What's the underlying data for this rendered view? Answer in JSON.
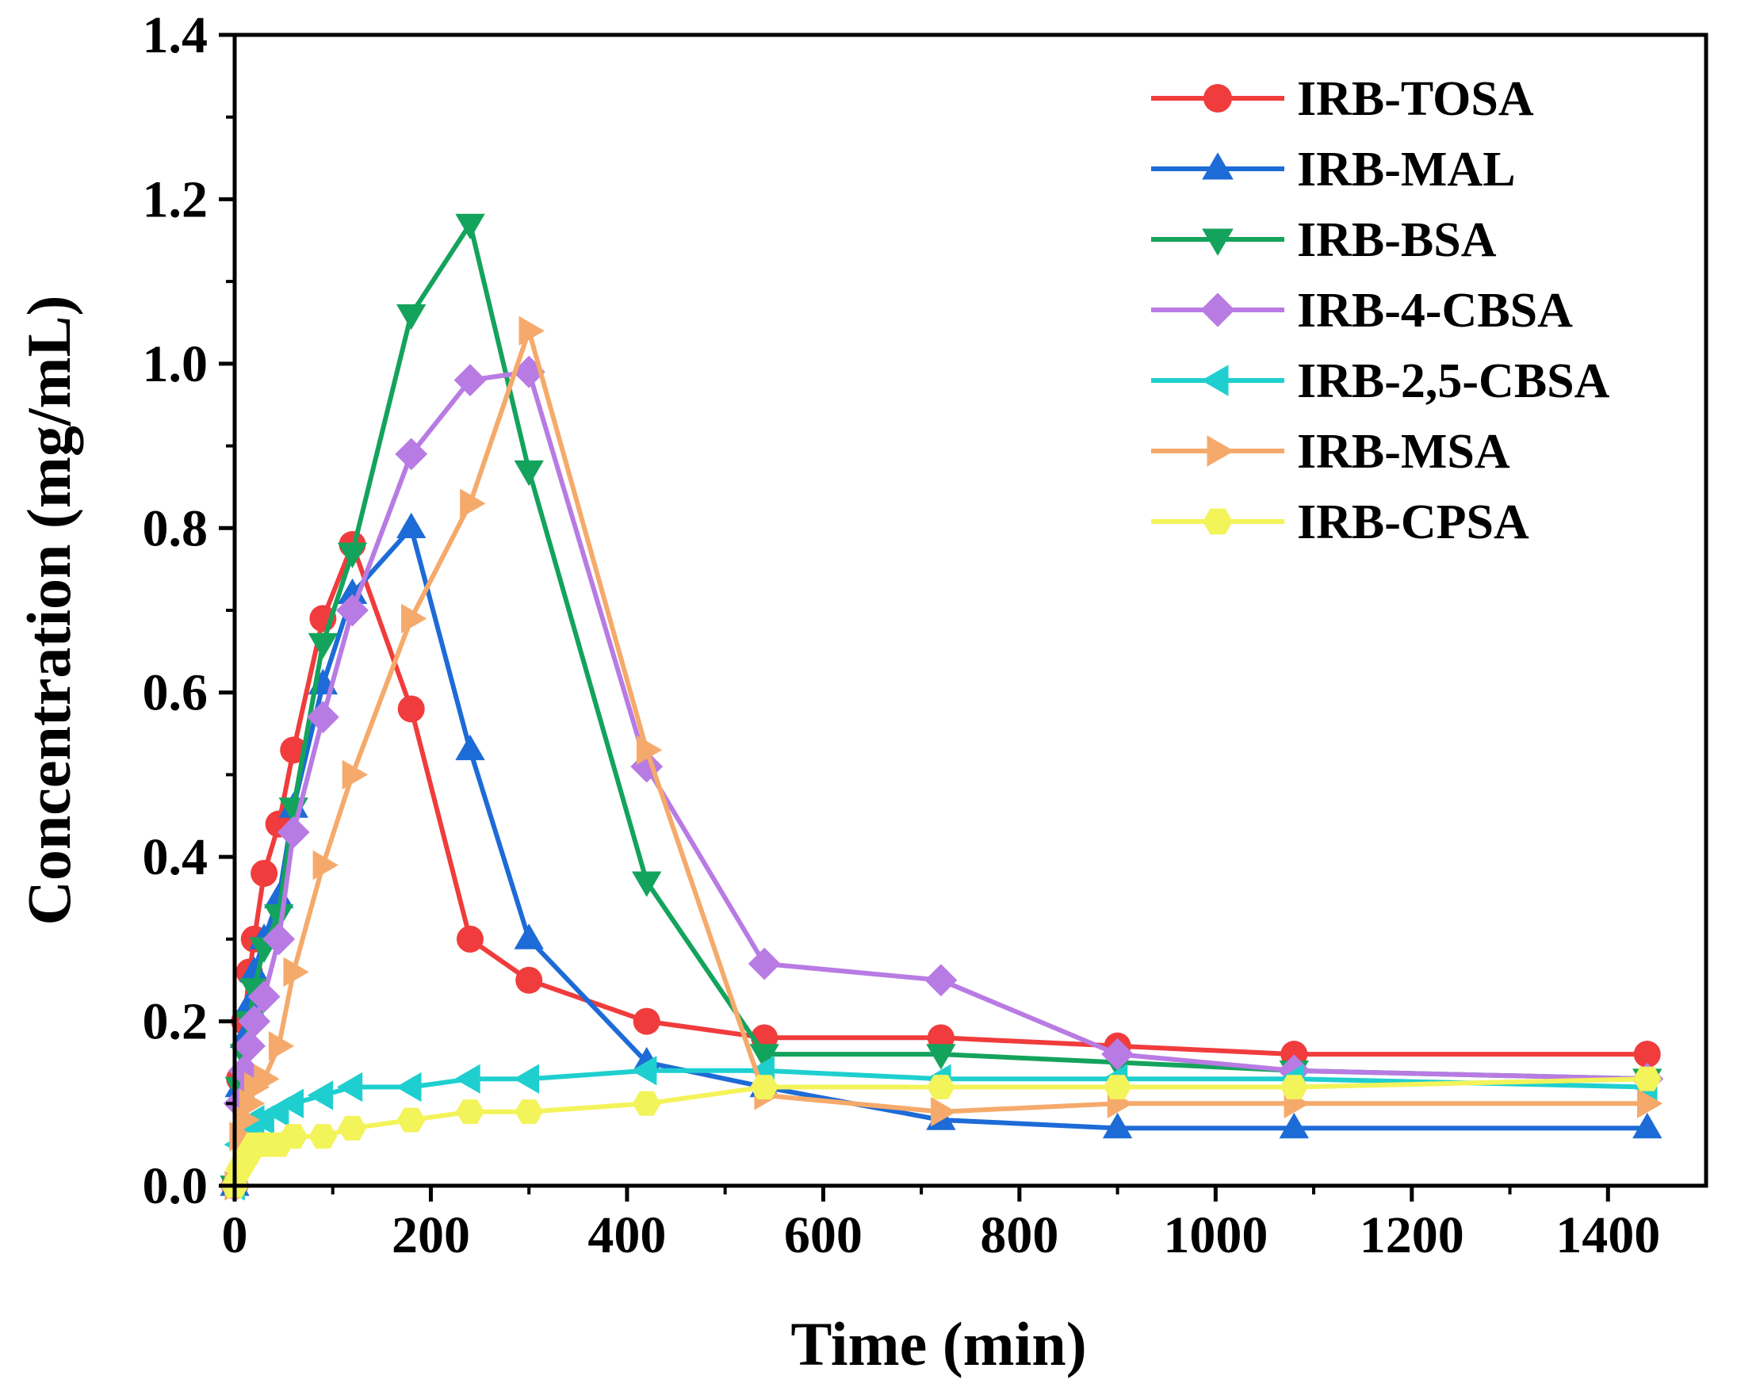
{
  "chart_data": {
    "type": "line",
    "title": "",
    "xlabel": "Time (min)",
    "ylabel": "Concentration (mg/mL)",
    "xlim": [
      0,
      1500
    ],
    "ylim": [
      0,
      1.4
    ],
    "xticks": [
      0,
      200,
      400,
      600,
      800,
      1000,
      1200,
      1400
    ],
    "xtick_labels": [
      "0",
      "200",
      "400",
      "600",
      "800",
      "1000",
      "1200",
      "1400"
    ],
    "yticks": [
      0,
      0.2,
      0.4,
      0.6,
      0.8,
      1.0,
      1.2,
      1.4
    ],
    "ytick_labels": [
      "0.0",
      "0.2",
      "0.4",
      "0.6",
      "0.8",
      "1.0",
      "1.2",
      "1.4"
    ],
    "grid": false,
    "legend_position": "top-right",
    "series": [
      {
        "name": "IRB-TOSA",
        "color": "#f03c3c",
        "marker": "circle",
        "x": [
          0,
          5,
          10,
          15,
          20,
          30,
          45,
          60,
          90,
          120,
          180,
          240,
          300,
          420,
          540,
          720,
          900,
          1080,
          1440
        ],
        "y": [
          0,
          0.13,
          0.2,
          0.26,
          0.3,
          0.38,
          0.44,
          0.53,
          0.69,
          0.78,
          0.58,
          0.3,
          0.25,
          0.2,
          0.18,
          0.18,
          0.17,
          0.16,
          0.16
        ]
      },
      {
        "name": "IRB-MAL",
        "color": "#1d6bd6",
        "marker": "triangle-up",
        "x": [
          0,
          5,
          10,
          15,
          20,
          30,
          45,
          60,
          90,
          120,
          180,
          240,
          300,
          420,
          540,
          720,
          900,
          1080,
          1440
        ],
        "y": [
          0,
          0.12,
          0.18,
          0.22,
          0.26,
          0.3,
          0.35,
          0.46,
          0.61,
          0.72,
          0.8,
          0.53,
          0.3,
          0.15,
          0.12,
          0.08,
          0.07,
          0.07,
          0.07
        ]
      },
      {
        "name": "IRB-BSA",
        "color": "#14a35c",
        "marker": "triangle-down",
        "x": [
          0,
          5,
          10,
          15,
          20,
          30,
          45,
          60,
          90,
          120,
          180,
          240,
          300,
          420,
          540,
          720,
          900,
          1080,
          1440
        ],
        "y": [
          0,
          0.12,
          0.16,
          0.2,
          0.24,
          0.29,
          0.33,
          0.46,
          0.66,
          0.77,
          1.06,
          1.17,
          0.87,
          0.37,
          0.16,
          0.16,
          0.15,
          0.14,
          0.13
        ]
      },
      {
        "name": "IRB-4-CBSA",
        "color": "#b87be3",
        "marker": "diamond",
        "x": [
          0,
          5,
          10,
          15,
          20,
          30,
          45,
          60,
          90,
          120,
          180,
          240,
          300,
          420,
          540,
          720,
          900,
          1080,
          1440
        ],
        "y": [
          0,
          0.1,
          0.14,
          0.17,
          0.2,
          0.23,
          0.3,
          0.43,
          0.57,
          0.7,
          0.89,
          0.98,
          0.99,
          0.51,
          0.27,
          0.25,
          0.16,
          0.14,
          0.13
        ]
      },
      {
        "name": "IRB-2,5-CBSA",
        "color": "#1fcfcf",
        "marker": "triangle-left",
        "x": [
          0,
          5,
          10,
          15,
          20,
          30,
          45,
          60,
          90,
          120,
          180,
          240,
          300,
          420,
          540,
          720,
          900,
          1080,
          1440
        ],
        "y": [
          0,
          0.05,
          0.06,
          0.07,
          0.08,
          0.08,
          0.09,
          0.1,
          0.11,
          0.12,
          0.12,
          0.13,
          0.13,
          0.14,
          0.14,
          0.13,
          0.13,
          0.13,
          0.12
        ]
      },
      {
        "name": "IRB-MSA",
        "color": "#f5aa6b",
        "marker": "triangle-right",
        "x": [
          0,
          5,
          10,
          15,
          20,
          30,
          45,
          60,
          90,
          120,
          180,
          240,
          300,
          420,
          540,
          720,
          900,
          1080,
          1440
        ],
        "y": [
          0,
          0.06,
          0.08,
          0.1,
          0.12,
          0.13,
          0.17,
          0.26,
          0.39,
          0.5,
          0.69,
          0.83,
          1.04,
          0.53,
          0.11,
          0.09,
          0.1,
          0.1,
          0.1
        ]
      },
      {
        "name": "IRB-CPSA",
        "color": "#f3f35a",
        "marker": "hexagon",
        "x": [
          0,
          5,
          10,
          15,
          20,
          30,
          45,
          60,
          90,
          120,
          180,
          240,
          300,
          420,
          540,
          720,
          900,
          1080,
          1440
        ],
        "y": [
          0,
          0.02,
          0.03,
          0.04,
          0.05,
          0.05,
          0.05,
          0.06,
          0.06,
          0.07,
          0.08,
          0.09,
          0.09,
          0.1,
          0.12,
          0.12,
          0.12,
          0.12,
          0.13
        ]
      }
    ]
  }
}
